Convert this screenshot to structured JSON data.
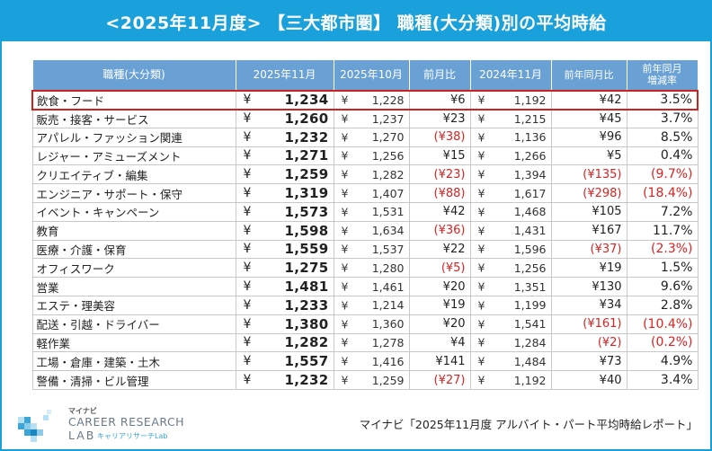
{
  "title": "<2025年11月度> 【三大都市圏】 職種(大分類)別の平均時給",
  "headers": {
    "category": "職種(大分類)",
    "nov2025": "2025年11月",
    "oct2025": "2025年10月",
    "mom": "前月比",
    "nov2024": "2024年11月",
    "yoy": "前年同月比",
    "yoy_rate_line1": "前年同月",
    "yoy_rate_line2": "増減率"
  },
  "yen_symbol": "¥",
  "rows": [
    {
      "category": "飲食・フード",
      "nov2025": "1,234",
      "oct2025": "1,228",
      "mom": "¥6",
      "nov2024": "1,192",
      "yoy": "¥42",
      "rate": "3.5%",
      "highlight": true
    },
    {
      "category": "販売・接客・サービス",
      "nov2025": "1,260",
      "oct2025": "1,237",
      "mom": "¥23",
      "nov2024": "1,215",
      "yoy": "¥45",
      "rate": "3.7%"
    },
    {
      "category": "アパレル・ファッション関連",
      "nov2025": "1,232",
      "oct2025": "1,270",
      "mom": "(¥38)",
      "nov2024": "1,136",
      "yoy": "¥96",
      "rate": "8.5%"
    },
    {
      "category": "レジャー・アミューズメント",
      "nov2025": "1,271",
      "oct2025": "1,256",
      "mom": "¥15",
      "nov2024": "1,266",
      "yoy": "¥5",
      "rate": "0.4%"
    },
    {
      "category": "クリエイティブ・編集",
      "nov2025": "1,259",
      "oct2025": "1,282",
      "mom": "(¥23)",
      "nov2024": "1,394",
      "yoy": "(¥135)",
      "rate": "(9.7%)"
    },
    {
      "category": "エンジニア・サポート・保守",
      "nov2025": "1,319",
      "oct2025": "1,407",
      "mom": "(¥88)",
      "nov2024": "1,617",
      "yoy": "(¥298)",
      "rate": "(18.4%)"
    },
    {
      "category": "イベント・キャンペーン",
      "nov2025": "1,573",
      "oct2025": "1,531",
      "mom": "¥42",
      "nov2024": "1,468",
      "yoy": "¥105",
      "rate": "7.2%"
    },
    {
      "category": "教育",
      "nov2025": "1,598",
      "oct2025": "1,634",
      "mom": "(¥36)",
      "nov2024": "1,431",
      "yoy": "¥167",
      "rate": "11.7%"
    },
    {
      "category": "医療・介護・保育",
      "nov2025": "1,559",
      "oct2025": "1,537",
      "mom": "¥22",
      "nov2024": "1,596",
      "yoy": "(¥37)",
      "rate": "(2.3%)"
    },
    {
      "category": "オフィスワーク",
      "nov2025": "1,275",
      "oct2025": "1,280",
      "mom": "(¥5)",
      "nov2024": "1,256",
      "yoy": "¥19",
      "rate": "1.5%"
    },
    {
      "category": "営業",
      "nov2025": "1,481",
      "oct2025": "1,461",
      "mom": "¥20",
      "nov2024": "1,351",
      "yoy": "¥130",
      "rate": "9.6%"
    },
    {
      "category": "エステ・理美容",
      "nov2025": "1,233",
      "oct2025": "1,214",
      "mom": "¥19",
      "nov2024": "1,199",
      "yoy": "¥34",
      "rate": "2.8%"
    },
    {
      "category": "配送・引越・ドライバー",
      "nov2025": "1,380",
      "oct2025": "1,360",
      "mom": "¥20",
      "nov2024": "1,541",
      "yoy": "(¥161)",
      "rate": "(10.4%)"
    },
    {
      "category": "軽作業",
      "nov2025": "1,282",
      "oct2025": "1,278",
      "mom": "¥4",
      "nov2024": "1,284",
      "yoy": "(¥2)",
      "rate": "(0.2%)"
    },
    {
      "category": "工場・倉庫・建築・土木",
      "nov2025": "1,557",
      "oct2025": "1,416",
      "mom": "¥141",
      "nov2024": "1,484",
      "yoy": "¥73",
      "rate": "4.9%"
    },
    {
      "category": "警備・清掃・ビル管理",
      "nov2025": "1,232",
      "oct2025": "1,259",
      "mom": "(¥27)",
      "nov2024": "1,192",
      "yoy": "¥40",
      "rate": "3.4%"
    }
  ],
  "logo": {
    "small": "マイナビ",
    "main": "CAREER RESEARCH",
    "lab": "LAB",
    "sub": "キャリアリサーチLab"
  },
  "source": "マイナビ「2025年11月度 アルバイト・パート平均時給レポート」",
  "colors": {
    "header_bg": "#1aa0db",
    "table_header_bg": "#6aa1d4",
    "negative": "#e02020",
    "highlight_border": "#d02020"
  }
}
